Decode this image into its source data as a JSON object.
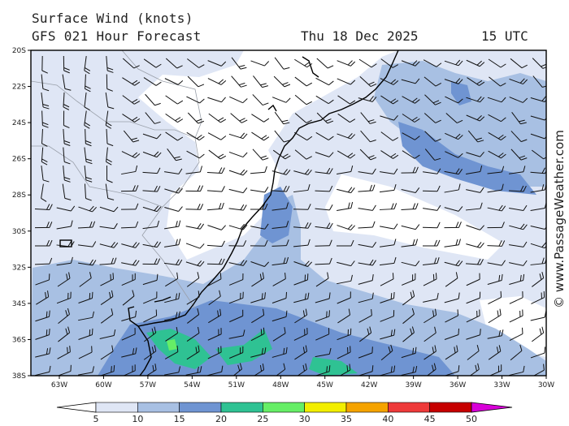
{
  "header": {
    "title": "Surface Wind (knots)",
    "model": "GFS 021 Hour Forecast",
    "date": "Thu 18 Dec 2025",
    "hour": "15 UTC"
  },
  "credit": "© www.PassageWeather.com",
  "axes": {
    "lat_labels": [
      "20S",
      "22S",
      "24S",
      "26S",
      "28S",
      "30S",
      "32S",
      "34S",
      "36S",
      "38S"
    ],
    "lon_labels": [
      "63W",
      "60W",
      "57W",
      "54W",
      "51W",
      "48W",
      "45W",
      "42W",
      "39W",
      "36W",
      "33W",
      "30W"
    ]
  },
  "legend": {
    "ticks": [
      "5",
      "10",
      "15",
      "20",
      "25",
      "30",
      "35",
      "40",
      "45",
      "50"
    ],
    "colors": [
      "#ffffff",
      "#dfe6f5",
      "#a8c0e3",
      "#6f94d2",
      "#2fc293",
      "#66ee66",
      "#f2ee00",
      "#f5a300",
      "#ee3a3a",
      "#c60000",
      "#d800d8"
    ]
  },
  "palette": {
    "land_line": "#000000",
    "border_line": "#9aa0aa",
    "barb": "#111111"
  }
}
